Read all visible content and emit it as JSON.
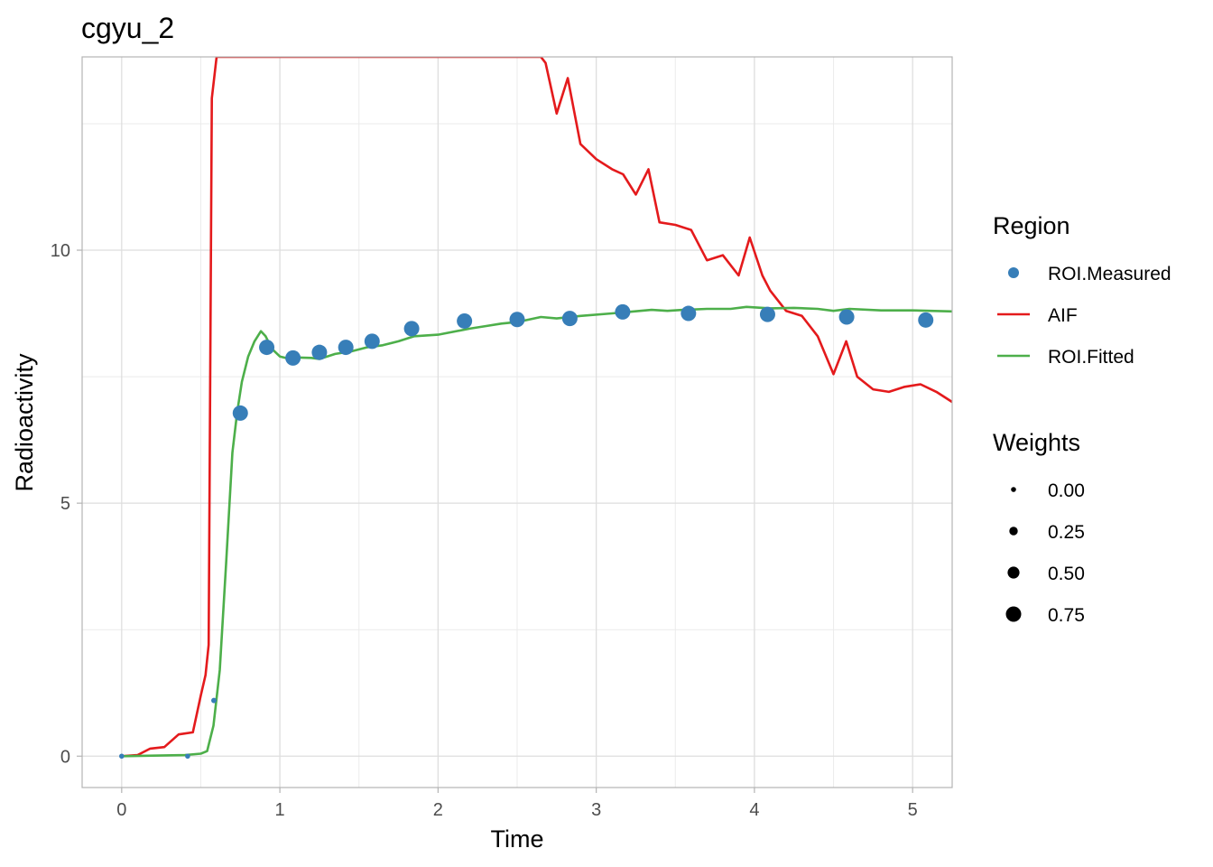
{
  "chart_data": {
    "type": "line",
    "title": "cgyu_2",
    "xlabel": "Time",
    "ylabel": "Radioactivity",
    "xlim": [
      -0.25,
      5.25
    ],
    "ylim": [
      -0.62,
      13.82
    ],
    "x_ticks": [
      0,
      1,
      2,
      3,
      4,
      5
    ],
    "y_ticks": [
      0,
      5,
      10
    ],
    "x_tick_labels": [
      "0",
      "1",
      "2",
      "3",
      "4",
      "5"
    ],
    "y_tick_labels": [
      "0",
      "5",
      "10"
    ],
    "grid": true,
    "legend_position": "right",
    "legend": {
      "region_title": "Region",
      "region_items": [
        {
          "label": "ROI.Measured",
          "kind": "point",
          "color": "#377EB8"
        },
        {
          "label": "AIF",
          "kind": "line",
          "color": "#E41A1C"
        },
        {
          "label": "ROI.Fitted",
          "kind": "line",
          "color": "#4DAF4A"
        }
      ],
      "weights_title": "Weights",
      "weights_items": [
        {
          "label": "0.00",
          "value": 0.0
        },
        {
          "label": "0.25",
          "value": 0.25
        },
        {
          "label": "0.50",
          "value": 0.5
        },
        {
          "label": "0.75",
          "value": 0.75
        }
      ]
    },
    "series": [
      {
        "name": "ROI.Measured",
        "kind": "points",
        "color": "#377EB8",
        "x": [
          0,
          0.417,
          0.583,
          0.75,
          0.917,
          1.083,
          1.25,
          1.417,
          1.583,
          1.833,
          2.167,
          2.5,
          2.833,
          3.167,
          3.583,
          4.083,
          4.583,
          5.083
        ],
        "y": [
          0,
          0,
          1.1,
          6.78,
          8.08,
          7.87,
          7.98,
          8.08,
          8.2,
          8.45,
          8.6,
          8.63,
          8.65,
          8.78,
          8.75,
          8.73,
          8.68,
          8.62
        ],
        "weights": [
          0.0,
          0.0,
          0.02,
          0.75,
          0.75,
          0.75,
          0.75,
          0.75,
          0.75,
          0.75,
          0.75,
          0.75,
          0.75,
          0.75,
          0.75,
          0.75,
          0.75,
          0.75
        ]
      },
      {
        "name": "AIF",
        "kind": "line",
        "color": "#E41A1C",
        "x": [
          0,
          0.1,
          0.18,
          0.27,
          0.36,
          0.45,
          0.5,
          0.53,
          0.55,
          0.57,
          0.6,
          2.65,
          2.68,
          2.75,
          2.82,
          2.9,
          3.0,
          3.1,
          3.17,
          3.25,
          3.33,
          3.4,
          3.5,
          3.6,
          3.7,
          3.8,
          3.9,
          3.97,
          4.05,
          4.1,
          4.2,
          4.3,
          4.4,
          4.5,
          4.58,
          4.65,
          4.75,
          4.85,
          4.95,
          5.05,
          5.15,
          5.25
        ],
        "y": [
          0,
          0.02,
          0.15,
          0.18,
          0.43,
          0.47,
          1.2,
          1.6,
          2.2,
          13.0,
          13.82,
          13.82,
          13.7,
          12.7,
          13.4,
          12.1,
          11.8,
          11.6,
          11.5,
          11.1,
          11.6,
          10.55,
          10.5,
          10.4,
          9.8,
          9.9,
          9.5,
          10.25,
          9.5,
          9.2,
          8.8,
          8.7,
          8.3,
          7.55,
          8.2,
          7.5,
          7.25,
          7.2,
          7.3,
          7.35,
          7.2,
          7.0
        ]
      },
      {
        "name": "ROI.Fitted",
        "kind": "line",
        "color": "#4DAF4A",
        "x": [
          0,
          0.2,
          0.4,
          0.5,
          0.54,
          0.58,
          0.62,
          0.66,
          0.7,
          0.73,
          0.76,
          0.8,
          0.84,
          0.88,
          0.91,
          0.95,
          1.0,
          1.05,
          1.1,
          1.2,
          1.25,
          1.35,
          1.45,
          1.55,
          1.65,
          1.75,
          1.85,
          2.0,
          2.2,
          2.3,
          2.4,
          2.5,
          2.65,
          2.75,
          2.9,
          3.1,
          3.2,
          3.35,
          3.45,
          3.55,
          3.7,
          3.85,
          3.95,
          4.1,
          4.25,
          4.4,
          4.5,
          4.6,
          4.8,
          5.0,
          5.25
        ],
        "y": [
          0,
          0.01,
          0.02,
          0.05,
          0.1,
          0.6,
          1.7,
          3.8,
          6.0,
          6.8,
          7.4,
          7.9,
          8.2,
          8.4,
          8.3,
          8.05,
          7.9,
          7.86,
          7.88,
          7.87,
          7.85,
          7.95,
          8.0,
          8.08,
          8.12,
          8.2,
          8.3,
          8.33,
          8.45,
          8.5,
          8.55,
          8.58,
          8.68,
          8.65,
          8.7,
          8.75,
          8.78,
          8.82,
          8.8,
          8.82,
          8.84,
          8.84,
          8.88,
          8.85,
          8.86,
          8.84,
          8.8,
          8.84,
          8.81,
          8.81,
          8.79
        ]
      }
    ]
  }
}
